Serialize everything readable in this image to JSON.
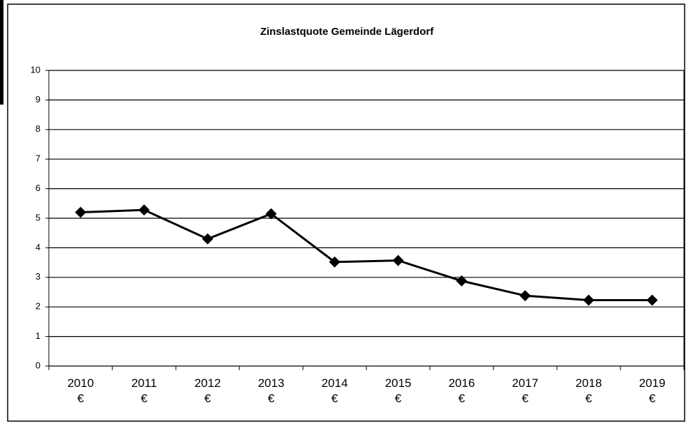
{
  "chart_data": {
    "type": "line",
    "title": "Zinslastquote Gemeinde Lägerdorf",
    "categories": [
      [
        "2010",
        "€"
      ],
      [
        "2011",
        "€"
      ],
      [
        "2012",
        "€"
      ],
      [
        "2013",
        "€"
      ],
      [
        "2014",
        "€"
      ],
      [
        "2015",
        "€"
      ],
      [
        "2016",
        "€"
      ],
      [
        "2017",
        "€"
      ],
      [
        "2018",
        "€"
      ],
      [
        "2019",
        "€"
      ]
    ],
    "values": [
      5.2,
      5.28,
      4.3,
      5.15,
      3.52,
      3.57,
      2.88,
      2.38,
      2.23,
      2.23
    ],
    "color": "#000000",
    "ylim": [
      0,
      10
    ],
    "yticks": [
      0,
      1,
      2,
      3,
      4,
      5,
      6,
      7,
      8,
      9,
      10
    ],
    "grid": true
  }
}
